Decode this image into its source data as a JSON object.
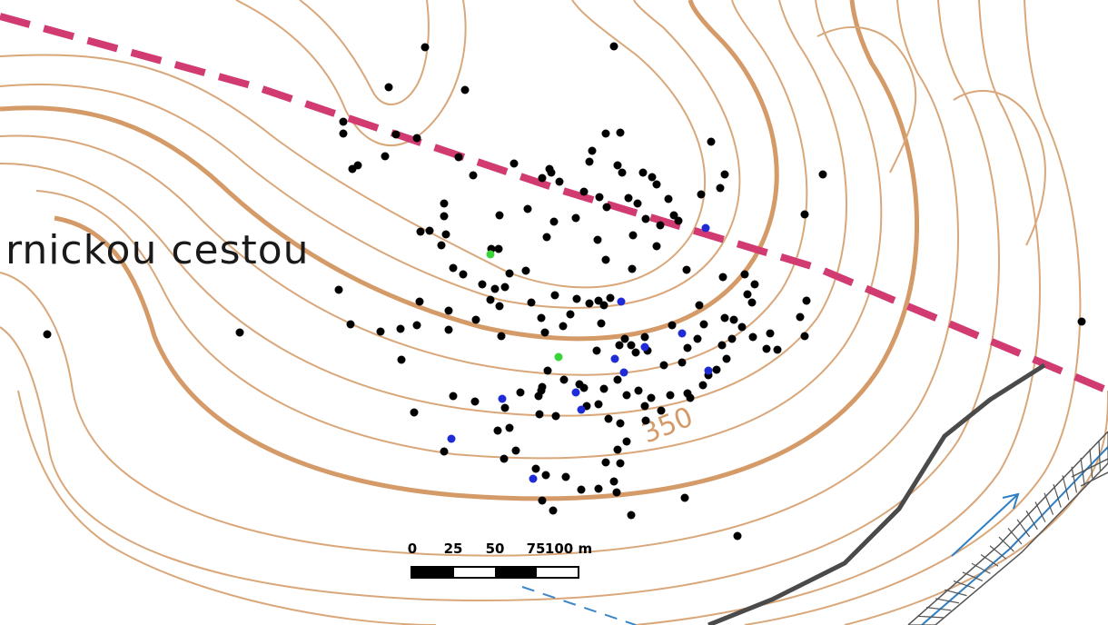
{
  "map": {
    "place_label": "rnickou cestou",
    "contour_label": "350",
    "scale": {
      "ticks": [
        "0",
        "25",
        "50",
        "75",
        "100 m"
      ]
    },
    "colors": {
      "contour": "#d9a77a",
      "boundary": "#d13b72",
      "stream": "#3d86c6",
      "road": "#4a4a4a",
      "point_black": "#000000",
      "point_blue": "#1f2bd6",
      "point_green": "#3ad43a"
    }
  }
}
